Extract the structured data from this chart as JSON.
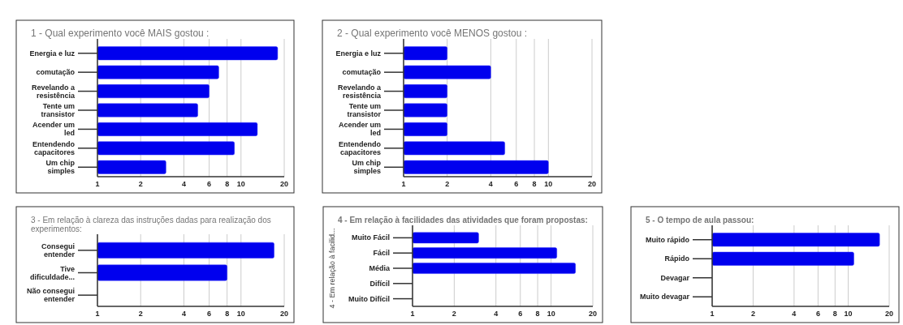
{
  "chart_data": [
    {
      "type": "bar",
      "orientation": "horizontal",
      "title": "1 - Qual experimento você MAIS gostou :",
      "categories": [
        "Energia e luz",
        "comutação",
        "Revelando a resistência",
        "Tente um transistor",
        "Acender um led",
        "Entendendo capacitores",
        "Um chip simples"
      ],
      "values": [
        18,
        7,
        6,
        5,
        13,
        9,
        3
      ],
      "color": "#0000ee",
      "log": "x",
      "xlim": [
        1,
        20
      ],
      "xticks": [
        1,
        2,
        4,
        6,
        8,
        10,
        20
      ],
      "grid": "x"
    },
    {
      "type": "bar",
      "orientation": "horizontal",
      "title": "2 - Qual experimento você MENOS gostou :",
      "categories": [
        "Energia e luz",
        "comutação",
        "Revelando a resistência",
        "Tente um transistor",
        "Acender um led",
        "Entendendo capacitores",
        "Um chip simples"
      ],
      "values": [
        2,
        4,
        2,
        2,
        2,
        5,
        10
      ],
      "color": "#0000ee",
      "log": "x",
      "xlim": [
        1,
        20
      ],
      "xticks": [
        1,
        2,
        4,
        6,
        8,
        10,
        20
      ],
      "grid": "x"
    },
    {
      "type": "bar",
      "orientation": "horizontal",
      "title": "3 - Em relação à clareza das instruções dadas para realização dos experimentos:",
      "categories": [
        "Consegui entender",
        "Tive dificuldade...",
        "Não consegui entender"
      ],
      "values": [
        17,
        8,
        null
      ],
      "color": "#0000ee",
      "log": "x",
      "xlim": [
        1,
        20
      ],
      "xticks": [
        1,
        2,
        4,
        6,
        8,
        10,
        20
      ],
      "grid": "x"
    },
    {
      "type": "bar",
      "orientation": "horizontal",
      "title": "4 - Em relação à facilidades das atividades que foram propostas:",
      "ylabel": "4 - Em relação à facilid...",
      "categories": [
        "Muito Fácil",
        "Fácil",
        "Média",
        "Difícil",
        "Muito Difícil"
      ],
      "values": [
        3,
        11,
        15,
        null,
        null
      ],
      "color": "#0000ee",
      "log": "x",
      "xlim": [
        1,
        20
      ],
      "xticks": [
        1,
        2,
        4,
        6,
        8,
        10,
        20
      ],
      "grid": "x"
    },
    {
      "type": "bar",
      "orientation": "horizontal",
      "title": "5 - O tempo de aula passou:",
      "categories": [
        "Muito rápido",
        "Rápido",
        "Devagar",
        "Muito devagar"
      ],
      "values": [
        17,
        11,
        null,
        null
      ],
      "color": "#0000ee",
      "log": "x",
      "xlim": [
        1,
        20
      ],
      "xticks": [
        1,
        2,
        4,
        6,
        8,
        10,
        20
      ],
      "grid": "x"
    }
  ]
}
